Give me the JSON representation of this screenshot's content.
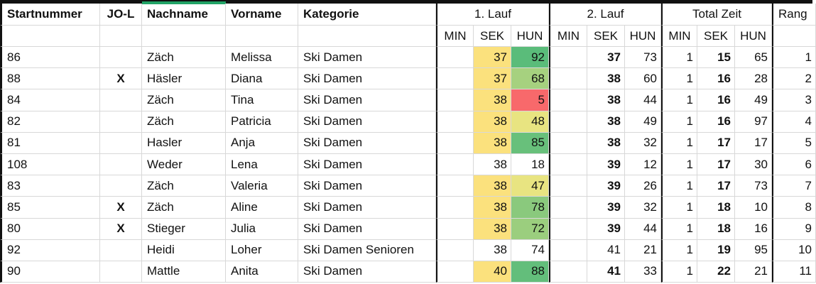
{
  "sheet": {
    "header": {
      "startnummer": "Startnummer",
      "jol": "JO-L",
      "nachname": "Nachname",
      "vorname": "Vorname",
      "kategorie": "Kategorie",
      "lauf1": "1. Lauf",
      "lauf2": "2. Lauf",
      "total": "Total Zeit",
      "rang": "Rang",
      "min": "MIN",
      "sek": "SEK",
      "hun": "HUN"
    },
    "colors": {
      "selection_accent_green": "#21A366",
      "sek_fill_yellow": "#FBE17D",
      "scale_red": "#F8696B",
      "scale_green": "#63BE7B",
      "grid_line": "#D8D8D8",
      "thick_border": "#111111"
    },
    "rows": [
      {
        "startnummer": "86",
        "jol": "",
        "nachname": "Zäch",
        "vorname": "Melissa",
        "kategorie": "Ski Damen",
        "lauf1": {
          "min": "",
          "sek": "37",
          "hun": "92",
          "sek_fill": "#FBE17D",
          "hun_fill": "#5ABC7A"
        },
        "lauf2": {
          "min": "",
          "sek": "37",
          "hun": "73",
          "sek_bold": true
        },
        "total": {
          "min": "1",
          "sek": "15",
          "hun": "65"
        },
        "rang": "1"
      },
      {
        "startnummer": "88",
        "jol": "X",
        "nachname": "Häsler",
        "vorname": "Diana",
        "kategorie": "Ski Damen",
        "lauf1": {
          "min": "",
          "sek": "37",
          "hun": "68",
          "sek_fill": "#FBE17D",
          "hun_fill": "#A6D17F"
        },
        "lauf2": {
          "min": "",
          "sek": "38",
          "hun": "60",
          "sek_bold": true
        },
        "total": {
          "min": "1",
          "sek": "16",
          "hun": "28"
        },
        "rang": "2"
      },
      {
        "startnummer": "84",
        "jol": "",
        "nachname": "Zäch",
        "vorname": "Tina",
        "kategorie": "Ski Damen",
        "lauf1": {
          "min": "",
          "sek": "38",
          "hun": "5",
          "sek_fill": "#FBE17D",
          "hun_fill": "#F8696B"
        },
        "lauf2": {
          "min": "",
          "sek": "38",
          "hun": "44",
          "sek_bold": true
        },
        "total": {
          "min": "1",
          "sek": "16",
          "hun": "49"
        },
        "rang": "3"
      },
      {
        "startnummer": "82",
        "jol": "",
        "nachname": "Zäch",
        "vorname": "Patricia",
        "kategorie": "Ski Damen",
        "lauf1": {
          "min": "",
          "sek": "38",
          "hun": "48",
          "sek_fill": "#FBE17D",
          "hun_fill": "#E8E481"
        },
        "lauf2": {
          "min": "",
          "sek": "38",
          "hun": "49",
          "sek_bold": true
        },
        "total": {
          "min": "1",
          "sek": "16",
          "hun": "97"
        },
        "rang": "4"
      },
      {
        "startnummer": "81",
        "jol": "",
        "nachname": "Hasler",
        "vorname": "Anja",
        "kategorie": "Ski Damen",
        "lauf1": {
          "min": "",
          "sek": "38",
          "hun": "85",
          "sek_fill": "#FBE17D",
          "hun_fill": "#68C07B"
        },
        "lauf2": {
          "min": "",
          "sek": "38",
          "hun": "32",
          "sek_bold": true
        },
        "total": {
          "min": "1",
          "sek": "17",
          "hun": "17"
        },
        "rang": "5"
      },
      {
        "startnummer": "108",
        "jol": "",
        "nachname": "Weder",
        "vorname": "Lena",
        "kategorie": "Ski Damen",
        "lauf1": {
          "min": "",
          "sek": "38",
          "hun": "18",
          "sek_fill": "",
          "hun_fill": ""
        },
        "lauf2": {
          "min": "",
          "sek": "39",
          "hun": "12",
          "sek_bold": true
        },
        "total": {
          "min": "1",
          "sek": "17",
          "hun": "30"
        },
        "rang": "6"
      },
      {
        "startnummer": "83",
        "jol": "",
        "nachname": "Zäch",
        "vorname": "Valeria",
        "kategorie": "Ski Damen",
        "lauf1": {
          "min": "",
          "sek": "38",
          "hun": "47",
          "sek_fill": "#FBE17D",
          "hun_fill": "#E8E481"
        },
        "lauf2": {
          "min": "",
          "sek": "39",
          "hun": "26",
          "sek_bold": true
        },
        "total": {
          "min": "1",
          "sek": "17",
          "hun": "73"
        },
        "rang": "7"
      },
      {
        "startnummer": "85",
        "jol": "X",
        "nachname": "Zäch",
        "vorname": "Aline",
        "kategorie": "Ski Damen",
        "lauf1": {
          "min": "",
          "sek": "38",
          "hun": "78",
          "sek_fill": "#FBE17D",
          "hun_fill": "#8AC97D"
        },
        "lauf2": {
          "min": "",
          "sek": "39",
          "hun": "32",
          "sek_bold": true
        },
        "total": {
          "min": "1",
          "sek": "18",
          "hun": "10"
        },
        "rang": "8"
      },
      {
        "startnummer": "80",
        "jol": "X",
        "nachname": "Stieger",
        "vorname": "Julia",
        "kategorie": "Ski Damen",
        "lauf1": {
          "min": "",
          "sek": "38",
          "hun": "72",
          "sek_fill": "#FBE17D",
          "hun_fill": "#9BCE7E"
        },
        "lauf2": {
          "min": "",
          "sek": "39",
          "hun": "44",
          "sek_bold": true
        },
        "total": {
          "min": "1",
          "sek": "18",
          "hun": "16"
        },
        "rang": "9"
      },
      {
        "startnummer": "92",
        "jol": "",
        "nachname": "Heidi",
        "vorname": "Loher",
        "kategorie": "Ski Damen Senioren",
        "lauf1": {
          "min": "",
          "sek": "38",
          "hun": "74",
          "sek_fill": "",
          "hun_fill": ""
        },
        "lauf2": {
          "min": "",
          "sek": "41",
          "hun": "21",
          "sek_bold": false
        },
        "total": {
          "min": "1",
          "sek": "19",
          "hun": "95"
        },
        "rang": "10"
      },
      {
        "startnummer": "90",
        "jol": "",
        "nachname": "Mattle",
        "vorname": "Anita",
        "kategorie": "Ski Damen",
        "lauf1": {
          "min": "",
          "sek": "40",
          "hun": "88",
          "sek_fill": "#FBE17D",
          "hun_fill": "#63BE7B"
        },
        "lauf2": {
          "min": "",
          "sek": "41",
          "hun": "33",
          "sek_bold": true
        },
        "total": {
          "min": "1",
          "sek": "22",
          "hun": "21"
        },
        "rang": "11"
      }
    ]
  }
}
